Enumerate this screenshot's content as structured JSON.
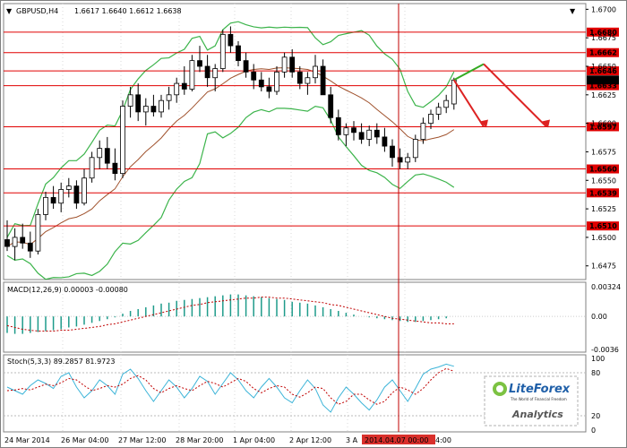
{
  "header": {
    "symbol": "GBPUSD,H4",
    "ohlc": "1.6617 1.6640 1.6612 1.6638",
    "menu_arrow": "dropdown-arrow"
  },
  "price_axis": {
    "ticks": [
      "1.6700",
      "1.6675",
      "1.6650",
      "1.6625",
      "1.6600",
      "1.6575",
      "1.6550",
      "1.6525",
      "1.6500",
      "1.6475"
    ]
  },
  "level_lines": [
    {
      "label": "1.6680",
      "value": 1.668
    },
    {
      "label": "1.6662",
      "value": 1.6662
    },
    {
      "label": "1.6646",
      "value": 1.6646
    },
    {
      "label": "1.6633",
      "value": 1.6633
    },
    {
      "label": "1.6597",
      "value": 1.6597
    },
    {
      "label": "1.6560",
      "value": 1.656
    },
    {
      "label": "1.6539",
      "value": 1.6539
    },
    {
      "label": "1.6510",
      "value": 1.651
    }
  ],
  "current_price": {
    "label": "1.6638",
    "value": 1.6638
  },
  "macd": {
    "label": "MACD(12,26,9) 0.00003 -0.00080",
    "ticks": [
      "0.00324",
      "0.00",
      "-0.0036"
    ]
  },
  "stoch": {
    "label": "Stoch(5,3,3) 89.2857 81.9723",
    "ticks": [
      "100",
      "80",
      "20",
      "0"
    ]
  },
  "time_axis": {
    "labels": [
      "24 Mar 2014",
      "26 Mar 04:00",
      "27 Mar 12:00",
      "28 Mar 20:00",
      "1 Apr 04:00",
      "2 Apr 12:00",
      "3 A",
      "4:00"
    ],
    "highlight": "2014.04.07 00:00"
  },
  "logo": {
    "name": "LiteForex",
    "tagline": "The World of Financial Freedom",
    "sub": "Analytics"
  },
  "colors": {
    "bands": "#3cb44b",
    "level_lines": "#e00000",
    "macd_hist": "#1e9b8a",
    "macd_signal": "#c00000",
    "stoch_main": "#3cb4d8",
    "stoch_signal": "#c00000",
    "forecast_up": "#33aa22",
    "forecast_down": "#dd2222"
  },
  "chart_data": {
    "type": "candlestick",
    "symbol": "GBPUSD",
    "timeframe": "H4",
    "ylim": [
      1.6463,
      1.6705
    ],
    "support_resistance": [
      1.668,
      1.6662,
      1.6646,
      1.6633,
      1.6597,
      1.656,
      1.6539,
      1.651
    ],
    "candles_ohlc": [
      [
        1.6498,
        1.6515,
        1.6488,
        1.6492
      ],
      [
        1.6492,
        1.6508,
        1.648,
        1.65
      ],
      [
        1.65,
        1.6512,
        1.649,
        1.6495
      ],
      [
        1.6495,
        1.6505,
        1.6482,
        1.6488
      ],
      [
        1.6488,
        1.6525,
        1.6485,
        1.652
      ],
      [
        1.652,
        1.654,
        1.6515,
        1.6535
      ],
      [
        1.6535,
        1.6545,
        1.6525,
        1.653
      ],
      [
        1.653,
        1.6548,
        1.6522,
        1.6542
      ],
      [
        1.6542,
        1.6552,
        1.6535,
        1.6545
      ],
      [
        1.6545,
        1.655,
        1.6525,
        1.653
      ],
      [
        1.653,
        1.656,
        1.6528,
        1.6552
      ],
      [
        1.6552,
        1.6575,
        1.6548,
        1.657
      ],
      [
        1.657,
        1.6585,
        1.656,
        1.6578
      ],
      [
        1.6578,
        1.6588,
        1.656,
        1.6565
      ],
      [
        1.6565,
        1.6578,
        1.655,
        1.6556
      ],
      [
        1.6556,
        1.662,
        1.6552,
        1.6615
      ],
      [
        1.6615,
        1.6632,
        1.6605,
        1.6625
      ],
      [
        1.6625,
        1.6635,
        1.6602,
        1.661
      ],
      [
        1.661,
        1.6622,
        1.6598,
        1.6615
      ],
      [
        1.6615,
        1.6625,
        1.6606,
        1.661
      ],
      [
        1.661,
        1.6625,
        1.6605,
        1.662
      ],
      [
        1.662,
        1.6632,
        1.6612,
        1.6625
      ],
      [
        1.6625,
        1.664,
        1.6618,
        1.6635
      ],
      [
        1.6635,
        1.665,
        1.6625,
        1.663
      ],
      [
        1.663,
        1.666,
        1.6628,
        1.6655
      ],
      [
        1.6655,
        1.6668,
        1.6645,
        1.665
      ],
      [
        1.665,
        1.666,
        1.6632,
        1.664
      ],
      [
        1.664,
        1.6652,
        1.6628,
        1.6648
      ],
      [
        1.6648,
        1.6682,
        1.6645,
        1.6678
      ],
      [
        1.6678,
        1.6685,
        1.6662,
        1.6668
      ],
      [
        1.6668,
        1.6672,
        1.665,
        1.6655
      ],
      [
        1.6655,
        1.6662,
        1.664,
        1.6645
      ],
      [
        1.6645,
        1.6652,
        1.663,
        1.6638
      ],
      [
        1.6638,
        1.6645,
        1.6628,
        1.6632
      ],
      [
        1.6632,
        1.664,
        1.6622,
        1.6628
      ],
      [
        1.6628,
        1.665,
        1.6625,
        1.6645
      ],
      [
        1.6645,
        1.6662,
        1.664,
        1.6658
      ],
      [
        1.6658,
        1.6665,
        1.664,
        1.6645
      ],
      [
        1.6645,
        1.665,
        1.663,
        1.6635
      ],
      [
        1.6635,
        1.6645,
        1.6625,
        1.664
      ],
      [
        1.664,
        1.666,
        1.6635,
        1.665
      ],
      [
        1.665,
        1.6656,
        1.663,
        1.6625
      ],
      [
        1.6625,
        1.6632,
        1.66,
        1.6605
      ],
      [
        1.6605,
        1.6612,
        1.6585,
        1.659
      ],
      [
        1.659,
        1.66,
        1.658,
        1.6596
      ],
      [
        1.6596,
        1.6602,
        1.6585,
        1.6592
      ],
      [
        1.6592,
        1.66,
        1.6582,
        1.6586
      ],
      [
        1.6586,
        1.6598,
        1.658,
        1.6594
      ],
      [
        1.6594,
        1.66,
        1.6582,
        1.6588
      ],
      [
        1.6588,
        1.6596,
        1.6575,
        1.658
      ],
      [
        1.658,
        1.6586,
        1.6562,
        1.657
      ],
      [
        1.657,
        1.6578,
        1.656,
        1.6566
      ],
      [
        1.6566,
        1.6574,
        1.656,
        1.657
      ],
      [
        1.657,
        1.659,
        1.6566,
        1.6586
      ],
      [
        1.6586,
        1.6605,
        1.6582,
        1.66
      ],
      [
        1.66,
        1.6612,
        1.6595,
        1.6608
      ],
      [
        1.6608,
        1.6618,
        1.6603,
        1.6614
      ],
      [
        1.6614,
        1.6625,
        1.6609,
        1.662
      ],
      [
        1.6617,
        1.664,
        1.6612,
        1.6638
      ]
    ],
    "forecast": {
      "up_target": 1.6652,
      "down_targets": [
        1.6597,
        1.6597
      ]
    },
    "macd_hist": [
      -0.0018,
      -0.0019,
      -0.0019,
      -0.0018,
      -0.0017,
      -0.0016,
      -0.0015,
      -0.0014,
      -0.0012,
      -0.0011,
      -0.0009,
      -0.0007,
      -0.0005,
      -0.0003,
      -0.0001,
      0.0003,
      0.0006,
      0.0008,
      0.001,
      0.0012,
      0.0014,
      0.0015,
      0.0017,
      0.0018,
      0.0019,
      0.002,
      0.0021,
      0.0022,
      0.0023,
      0.0024,
      0.0024,
      0.0023,
      0.0022,
      0.0021,
      0.002,
      0.0019,
      0.0018,
      0.0016,
      0.0015,
      0.0014,
      0.0012,
      0.001,
      0.0008,
      0.0006,
      0.0004,
      0.0002,
      0.0,
      -0.0001,
      -0.0002,
      -0.0003,
      -0.0004,
      -0.0005,
      -0.0006,
      -0.0006,
      -0.0005,
      -0.0004,
      -0.0003,
      -0.0002,
      0.0
    ],
    "macd_signal": [
      -0.001,
      -0.0012,
      -0.0014,
      -0.0015,
      -0.0016,
      -0.0016,
      -0.0016,
      -0.0015,
      -0.0015,
      -0.0014,
      -0.0013,
      -0.0012,
      -0.0011,
      -0.0009,
      -0.0008,
      -0.0006,
      -0.0004,
      -0.0002,
      0.0,
      0.0002,
      0.0004,
      0.0006,
      0.0008,
      0.001,
      0.0012,
      0.0013,
      0.0015,
      0.0016,
      0.0017,
      0.0018,
      0.0019,
      0.002,
      0.002,
      0.0021,
      0.0021,
      0.002,
      0.002,
      0.0019,
      0.0018,
      0.0017,
      0.0016,
      0.0015,
      0.0013,
      0.0012,
      0.001,
      0.0008,
      0.0006,
      0.0004,
      0.0002,
      0.0,
      -0.0002,
      -0.0003,
      -0.0004,
      -0.0005,
      -0.0006,
      -0.0007,
      -0.0007,
      -0.0008,
      -0.0008
    ],
    "stoch_main": [
      60,
      55,
      50,
      62,
      70,
      65,
      58,
      75,
      80,
      60,
      45,
      55,
      70,
      62,
      50,
      78,
      85,
      72,
      55,
      40,
      55,
      70,
      60,
      45,
      58,
      75,
      68,
      50,
      65,
      80,
      70,
      55,
      45,
      60,
      72,
      60,
      45,
      38,
      55,
      70,
      58,
      35,
      25,
      45,
      60,
      50,
      38,
      28,
      42,
      60,
      70,
      55,
      40,
      58,
      78,
      85,
      88,
      92,
      89
    ],
    "stoch_signal": [
      55,
      56,
      58,
      56,
      60,
      64,
      62,
      66,
      72,
      70,
      62,
      55,
      58,
      62,
      60,
      64,
      72,
      76,
      70,
      58,
      52,
      58,
      62,
      58,
      55,
      62,
      68,
      65,
      60,
      66,
      72,
      68,
      58,
      52,
      58,
      62,
      60,
      50,
      46,
      52,
      60,
      58,
      45,
      36,
      40,
      50,
      50,
      42,
      36,
      40,
      52,
      60,
      56,
      50,
      58,
      70,
      80,
      86,
      82
    ]
  }
}
